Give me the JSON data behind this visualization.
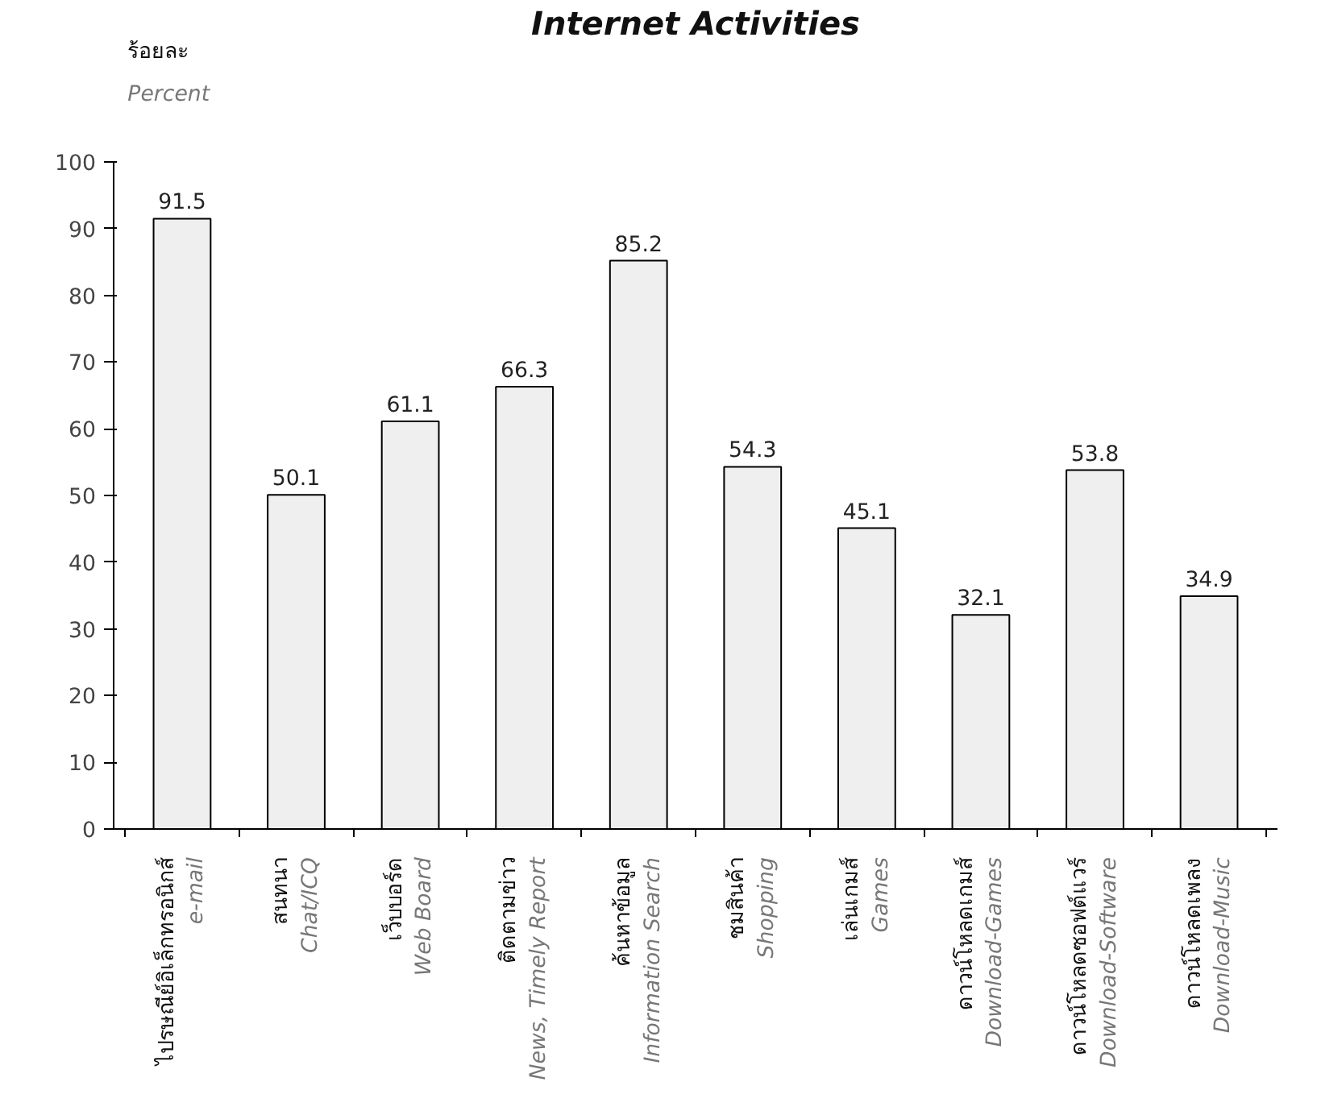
{
  "chart_data": {
    "type": "bar",
    "title": "Internet Activities",
    "ylabel": "ร้อยละ\nPercent",
    "categories": [
      "ไปรษณีย์อิเล็กทรอนิกส์\ne-mail",
      "สนทนา\nChat/ICQ",
      "เว็บบอร์ด\nWeb Board",
      "ติดตามข่าว\nNews, Timely Report",
      "ค้นหาข้อมูล\nInformation Search",
      "ชมสินค้า\nShopping",
      "เล่นเกมส์\nGames",
      "ดาวน์โหลดเกมส์\nDownload-Games",
      "ดาวน์โหลดซอฟต์แวร์\nDownload-Software",
      "ดาวน์โหลดเพลง\nDownload-Music"
    ],
    "values": [
      91.5,
      50.1,
      61.1,
      66.3,
      85.2,
      54.3,
      45.1,
      32.1,
      53.8,
      34.9
    ],
    "color": "#efefef",
    "ylim": [
      0,
      100
    ],
    "yticks": [
      0,
      10,
      20,
      30,
      40,
      50,
      60,
      70,
      80,
      90,
      100
    ],
    "grid": false,
    "data_labels": true
  }
}
